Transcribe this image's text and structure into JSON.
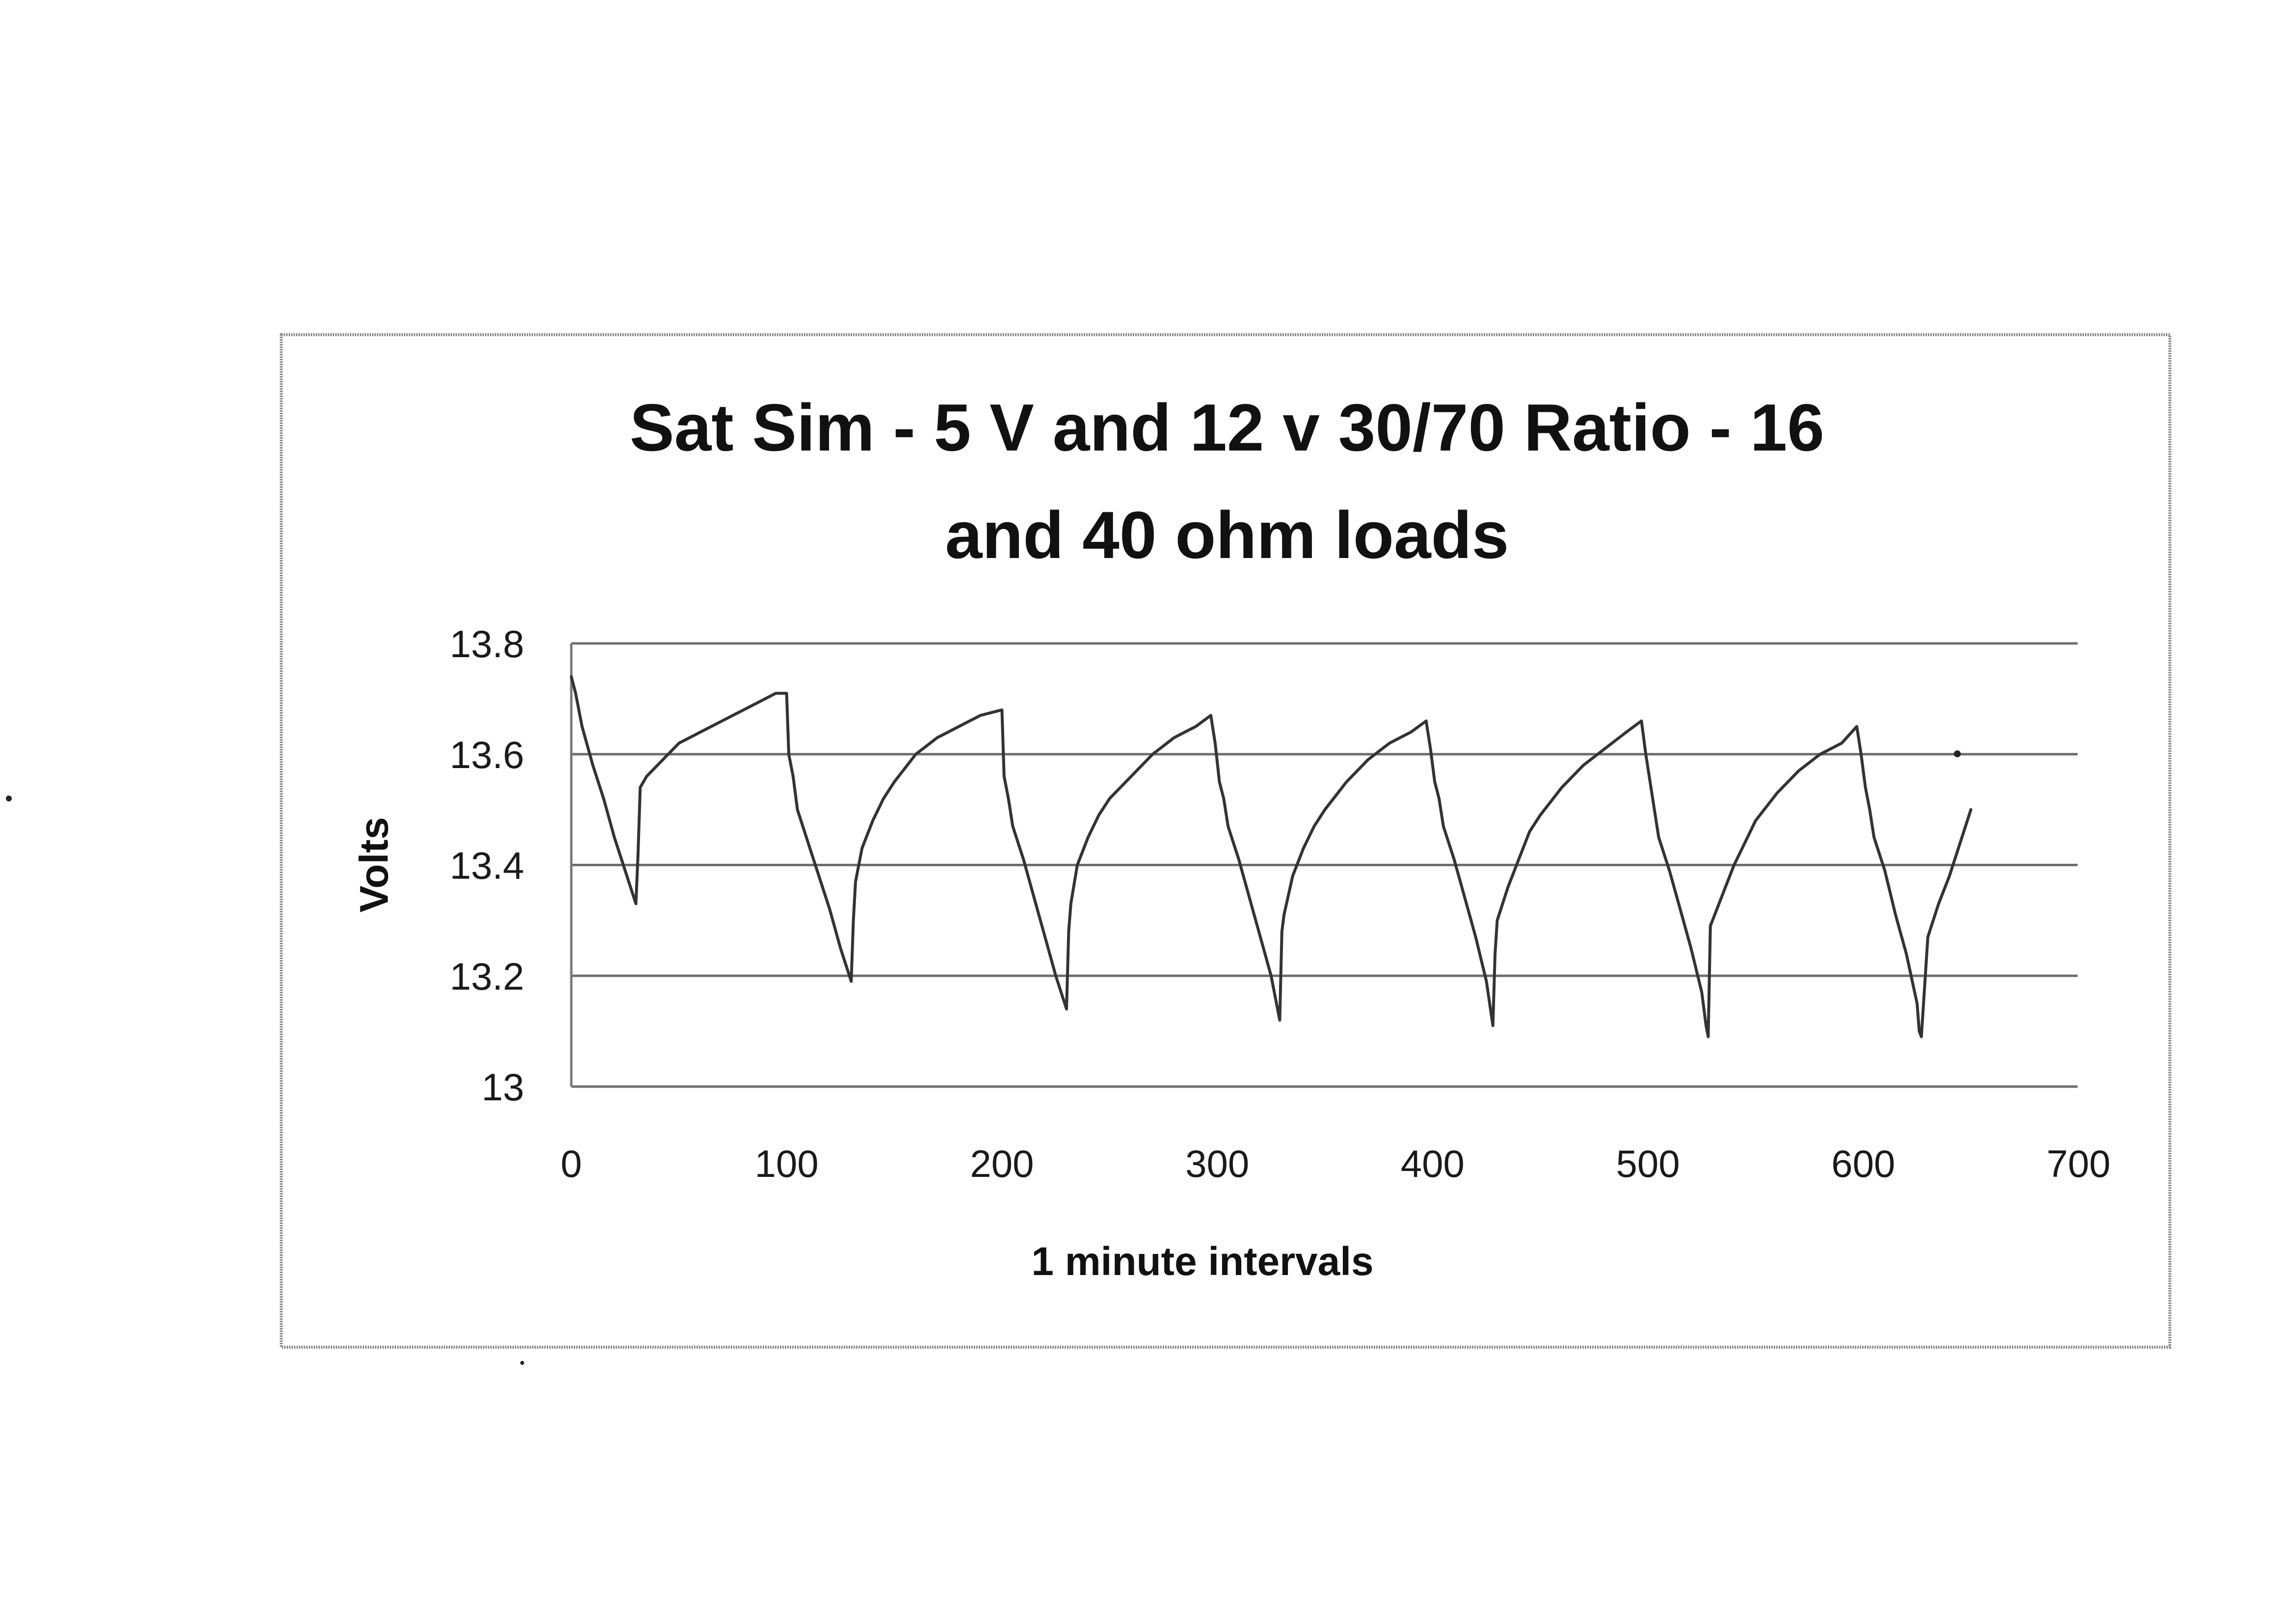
{
  "chart_data": {
    "type": "line",
    "title_lines": [
      "Sat Sim - 5 V and 12 v 30/70 Ratio - 16",
      "and 40 ohm loads"
    ],
    "xlabel": "1 minute intervals",
    "ylabel": "Volts",
    "xlim": [
      0,
      700
    ],
    "ylim": [
      13,
      13.8
    ],
    "x_ticks": [
      0,
      100,
      200,
      300,
      400,
      500,
      600,
      700
    ],
    "y_ticks": [
      13,
      13.2,
      13.4,
      13.6,
      13.8
    ],
    "y_tick_labels": [
      "13",
      "13.2",
      "13.4",
      "13.6",
      "13.8"
    ],
    "grid": true,
    "legend": "none",
    "line_color": "#333333",
    "series": [
      {
        "x": [
          0,
          2,
          5,
          10,
          15,
          20,
          25,
          30,
          31,
          32,
          35,
          40,
          45,
          50,
          55,
          60,
          65,
          70,
          75,
          80,
          85,
          90,
          95,
          100,
          101,
          103,
          105,
          110,
          115,
          120,
          125,
          130,
          131,
          132,
          135,
          140,
          145,
          150,
          160,
          170,
          180,
          190,
          200,
          201,
          203,
          205,
          210,
          215,
          220,
          225,
          230,
          231,
          232,
          235,
          240,
          245,
          250,
          260,
          270,
          280,
          290,
          297,
          299,
          301,
          303,
          305,
          310,
          315,
          320,
          325,
          329,
          330,
          331,
          335,
          340,
          345,
          350,
          360,
          370,
          380,
          390,
          397,
          399,
          401,
          403,
          405,
          410,
          415,
          420,
          425,
          428,
          429,
          430,
          435,
          440,
          445,
          450,
          460,
          470,
          480,
          490,
          497,
          499,
          501,
          503,
          505,
          510,
          515,
          520,
          525,
          527,
          528,
          529,
          535,
          540,
          545,
          550,
          560,
          570,
          580,
          590,
          597,
          599,
          601,
          603,
          605,
          610,
          615,
          620,
          625,
          626,
          627,
          630,
          635,
          640,
          645,
          650
        ],
        "y": [
          13.74,
          13.71,
          13.65,
          13.58,
          13.52,
          13.45,
          13.39,
          13.33,
          13.42,
          13.54,
          13.56,
          13.58,
          13.6,
          13.62,
          13.63,
          13.64,
          13.65,
          13.66,
          13.67,
          13.68,
          13.69,
          13.7,
          13.71,
          13.71,
          13.6,
          13.56,
          13.5,
          13.44,
          13.38,
          13.32,
          13.25,
          13.19,
          13.3,
          13.37,
          13.43,
          13.48,
          13.52,
          13.55,
          13.6,
          13.63,
          13.65,
          13.67,
          13.68,
          13.56,
          13.52,
          13.47,
          13.41,
          13.34,
          13.27,
          13.2,
          13.14,
          13.28,
          13.33,
          13.4,
          13.45,
          13.49,
          13.52,
          13.56,
          13.6,
          13.63,
          13.65,
          13.67,
          13.62,
          13.55,
          13.52,
          13.47,
          13.41,
          13.34,
          13.27,
          13.2,
          13.12,
          13.28,
          13.31,
          13.38,
          13.43,
          13.47,
          13.5,
          13.55,
          13.59,
          13.62,
          13.64,
          13.66,
          13.61,
          13.55,
          13.52,
          13.47,
          13.41,
          13.34,
          13.27,
          13.19,
          13.11,
          13.24,
          13.3,
          13.36,
          13.41,
          13.46,
          13.49,
          13.54,
          13.58,
          13.61,
          13.64,
          13.66,
          13.6,
          13.55,
          13.5,
          13.45,
          13.39,
          13.32,
          13.25,
          13.17,
          13.11,
          13.09,
          13.29,
          13.35,
          13.4,
          13.44,
          13.48,
          13.53,
          13.57,
          13.6,
          13.62,
          13.65,
          13.6,
          13.54,
          13.5,
          13.45,
          13.39,
          13.31,
          13.24,
          13.15,
          13.1,
          13.09,
          13.27,
          13.33,
          13.38,
          13.44,
          13.5
        ]
      }
    ]
  }
}
